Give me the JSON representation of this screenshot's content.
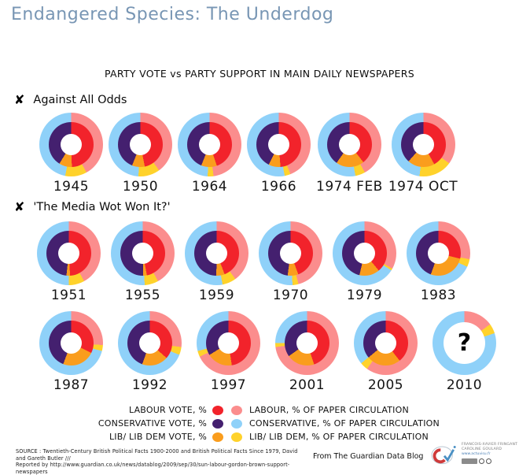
{
  "page": {
    "title": "Endangered Species: The Underdog",
    "subtitle": "PARTY VOTE vs PARTY SUPPORT IN MAIN DAILY NEWSPAPERS"
  },
  "colors": {
    "title": "#7896B4",
    "labour_vote": "#F2232B",
    "labour_circulation": "#FB8D8D",
    "conservative_vote": "#44206F",
    "conservative_circulation": "#8FD1F9",
    "libdem_vote": "#FA9D1D",
    "libdem_circulation": "#FFD22B"
  },
  "legend": {
    "rows": [
      {
        "left": "LABOUR VOTE, %",
        "left_color": "#F2232B",
        "right": "LABOUR, % OF PAPER CIRCULATION",
        "right_color": "#FB8D8D"
      },
      {
        "left": "CONSERVATIVE VOTE, %",
        "left_color": "#44206F",
        "right": "CONSERVATIVE, % OF PAPER CIRCULATION",
        "right_color": "#8FD1F9"
      },
      {
        "left": "LIB/ LIB DEM VOTE, %",
        "left_color": "#FA9D1D",
        "right": "LIB/ LIB DEM, % OF PAPER CIRCULATION",
        "right_color": "#FFD22B"
      }
    ]
  },
  "chart_data": {
    "type": "pie",
    "variant": "nested-donut-grid",
    "title": "PARTY VOTE vs PARTY SUPPORT IN MAIN DAILY NEWSPAPERS",
    "rings": {
      "inner": "party vote, %",
      "outer": "% of paper circulation"
    },
    "slice_order_clockwise_from_top": [
      "labour",
      "libdem",
      "conservative"
    ],
    "series_colors": {
      "labour_vote": "#F2232B",
      "libdem_vote": "#FA9D1D",
      "conservative_vote": "#44206F",
      "labour_circulation": "#FB8D8D",
      "libdem_circulation": "#FFD22B",
      "conservative_circulation": "#8FD1F9"
    },
    "sections": [
      {
        "title": "Against All Odds",
        "rows": [
          [
            {
              "year": "1945",
              "votes": {
                "labour": 49.5,
                "libdem": 9.3,
                "conservative": 41.2
              },
              "circulation": {
                "labour": 42,
                "libdem": 11,
                "conservative": 47
              }
            },
            {
              "year": "1950",
              "votes": {
                "labour": 46.8,
                "libdem": 9.2,
                "conservative": 44.0
              },
              "circulation": {
                "labour": 40,
                "libdem": 11,
                "conservative": 49
              }
            },
            {
              "year": "1964",
              "votes": {
                "labour": 44.7,
                "libdem": 11.3,
                "conservative": 44.0
              },
              "circulation": {
                "labour": 48,
                "libdem": 3,
                "conservative": 49
              }
            },
            {
              "year": "1966",
              "votes": {
                "labour": 48.8,
                "libdem": 8.6,
                "conservative": 42.6
              },
              "circulation": {
                "labour": 44,
                "libdem": 3,
                "conservative": 53
              }
            },
            {
              "year": "1974 FEB",
              "votes": {
                "labour": 39.4,
                "libdem": 20.4,
                "conservative": 40.2
              },
              "circulation": {
                "labour": 42,
                "libdem": 5,
                "conservative": 53
              }
            },
            {
              "year": "1974 OCT",
              "votes": {
                "labour": 42.0,
                "libdem": 19.6,
                "conservative": 38.4
              },
              "circulation": {
                "labour": 35,
                "libdem": 17,
                "conservative": 48
              }
            }
          ]
        ]
      },
      {
        "title": "'The Media Wot Won It?'",
        "rows": [
          [
            {
              "year": "1951",
              "votes": {
                "labour": 49.1,
                "libdem": 2.6,
                "conservative": 48.3
              },
              "circulation": {
                "labour": 42,
                "libdem": 8,
                "conservative": 50
              }
            },
            {
              "year": "1955",
              "votes": {
                "labour": 47.0,
                "libdem": 2.7,
                "conservative": 50.3
              },
              "circulation": {
                "labour": 42,
                "libdem": 7,
                "conservative": 51
              }
            },
            {
              "year": "1959",
              "votes": {
                "labour": 44.2,
                "libdem": 6.0,
                "conservative": 49.8
              },
              "circulation": {
                "labour": 40,
                "libdem": 7,
                "conservative": 53
              }
            },
            {
              "year": "1970",
              "votes": {
                "labour": 44.4,
                "libdem": 7.7,
                "conservative": 47.9
              },
              "circulation": {
                "labour": 46,
                "libdem": 3,
                "conservative": 51
              }
            },
            {
              "year": "1979",
              "votes": {
                "labour": 39.0,
                "libdem": 14.6,
                "conservative": 46.4
              },
              "circulation": {
                "labour": 33,
                "libdem": 1,
                "conservative": 66
              }
            },
            {
              "year": "1983",
              "votes": {
                "labour": 28.9,
                "libdem": 26.6,
                "conservative": 44.5
              },
              "circulation": {
                "labour": 28,
                "libdem": 4,
                "conservative": 68
              }
            }
          ],
          [
            {
              "year": "1987",
              "votes": {
                "labour": 32.2,
                "libdem": 23.6,
                "conservative": 44.2
              },
              "circulation": {
                "labour": 26,
                "libdem": 3,
                "conservative": 71
              }
            },
            {
              "year": "1992",
              "votes": {
                "labour": 36.6,
                "libdem": 18.9,
                "conservative": 44.5
              },
              "circulation": {
                "labour": 27,
                "libdem": 4,
                "conservative": 69
              }
            },
            {
              "year": "1997",
              "votes": {
                "labour": 47.6,
                "libdem": 18.5,
                "conservative": 33.9
              },
              "circulation": {
                "labour": 68,
                "libdem": 3,
                "conservative": 29
              }
            },
            {
              "year": "2001",
              "votes": {
                "labour": 44.9,
                "libdem": 20.2,
                "conservative": 34.9
              },
              "circulation": {
                "labour": 73,
                "libdem": 2,
                "conservative": 25
              }
            },
            {
              "year": "2005",
              "votes": {
                "labour": 39.3,
                "libdem": 24.6,
                "conservative": 36.1
              },
              "circulation": {
                "labour": 60,
                "libdem": 4,
                "conservative": 36
              }
            },
            {
              "year": "2010",
              "votes": null,
              "placeholder": "?",
              "circulation": {
                "labour": 15,
                "libdem": 5,
                "conservative": 80
              }
            }
          ]
        ]
      }
    ]
  },
  "footer": {
    "source_line1": "SOURCE : Twentieth-Century British Political Facts 1900-2000 and British Political Facts Since 1979, David and Gareth Butler ///",
    "source_line2": "Reported by  http://www.guardian.co.uk/news/datablog/2009/sep/30/sun-labour-gordon-brown-support-newspapers",
    "attribution": "From The Guardian Data Blog",
    "credits": {
      "line1": "FRANCOIS-XAVIER FRINGANT",
      "line2": "CAROLINE GOULARD",
      "url": "www.actuvisu.fr"
    }
  }
}
